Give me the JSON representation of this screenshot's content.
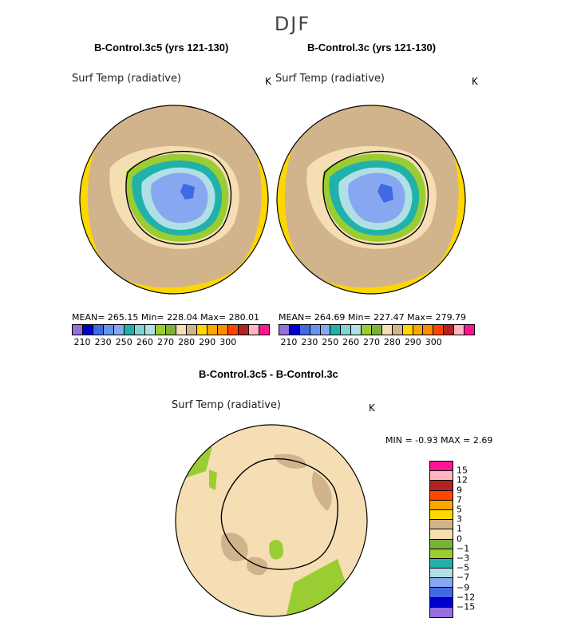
{
  "season": "DJF",
  "panels": [
    {
      "title": "B-Control.3c5 (yrs 121-130)",
      "field": "Surf Temp (radiative)",
      "unit": "K",
      "stats": "MEAN= 265.15   Min= 228.04   Max= 280.01"
    },
    {
      "title": "B-Control.3c (yrs 121-130)",
      "field": "Surf Temp (radiative)",
      "unit": "K",
      "stats": "MEAN= 264.69   Min= 227.47   Max= 279.79"
    }
  ],
  "diff": {
    "title": "B-Control.3c5 - B-Control.3c",
    "field": "Surf Temp (radiative)",
    "unit": "K",
    "stats": "MIN =   -0.93  MAX =    2.69"
  },
  "colorbar_main": {
    "colors": [
      "#9370db",
      "#0000cd",
      "#4169e1",
      "#6495ed",
      "#87a8f0",
      "#20b2aa",
      "#7fd4d4",
      "#b0e0e6",
      "#9acd32",
      "#7ab23a",
      "#f5deb3",
      "#d2b48c",
      "#ffd700",
      "#ffa500",
      "#ff8c00",
      "#ff4500",
      "#b22222",
      "#ffb6c1",
      "#ff1493"
    ],
    "labels": [
      "210",
      "230",
      "250",
      "260",
      "270",
      "280",
      "290",
      "300"
    ]
  },
  "colorbar_diff": {
    "colors": [
      "#ff1493",
      "#ffb6c1",
      "#b22222",
      "#ff4500",
      "#ffa500",
      "#ffd700",
      "#d2b48c",
      "#f5deb3",
      "#7ab23a",
      "#9acd32",
      "#20b2aa",
      "#b0e0e6",
      "#87a8f0",
      "#4169e1",
      "#0000cd",
      "#9370db"
    ],
    "labels": [
      "15",
      "12",
      "9",
      "7",
      "5",
      "3",
      "1",
      "0",
      "−1",
      "−3",
      "−5",
      "−7",
      "−9",
      "−12",
      "−15"
    ]
  }
}
